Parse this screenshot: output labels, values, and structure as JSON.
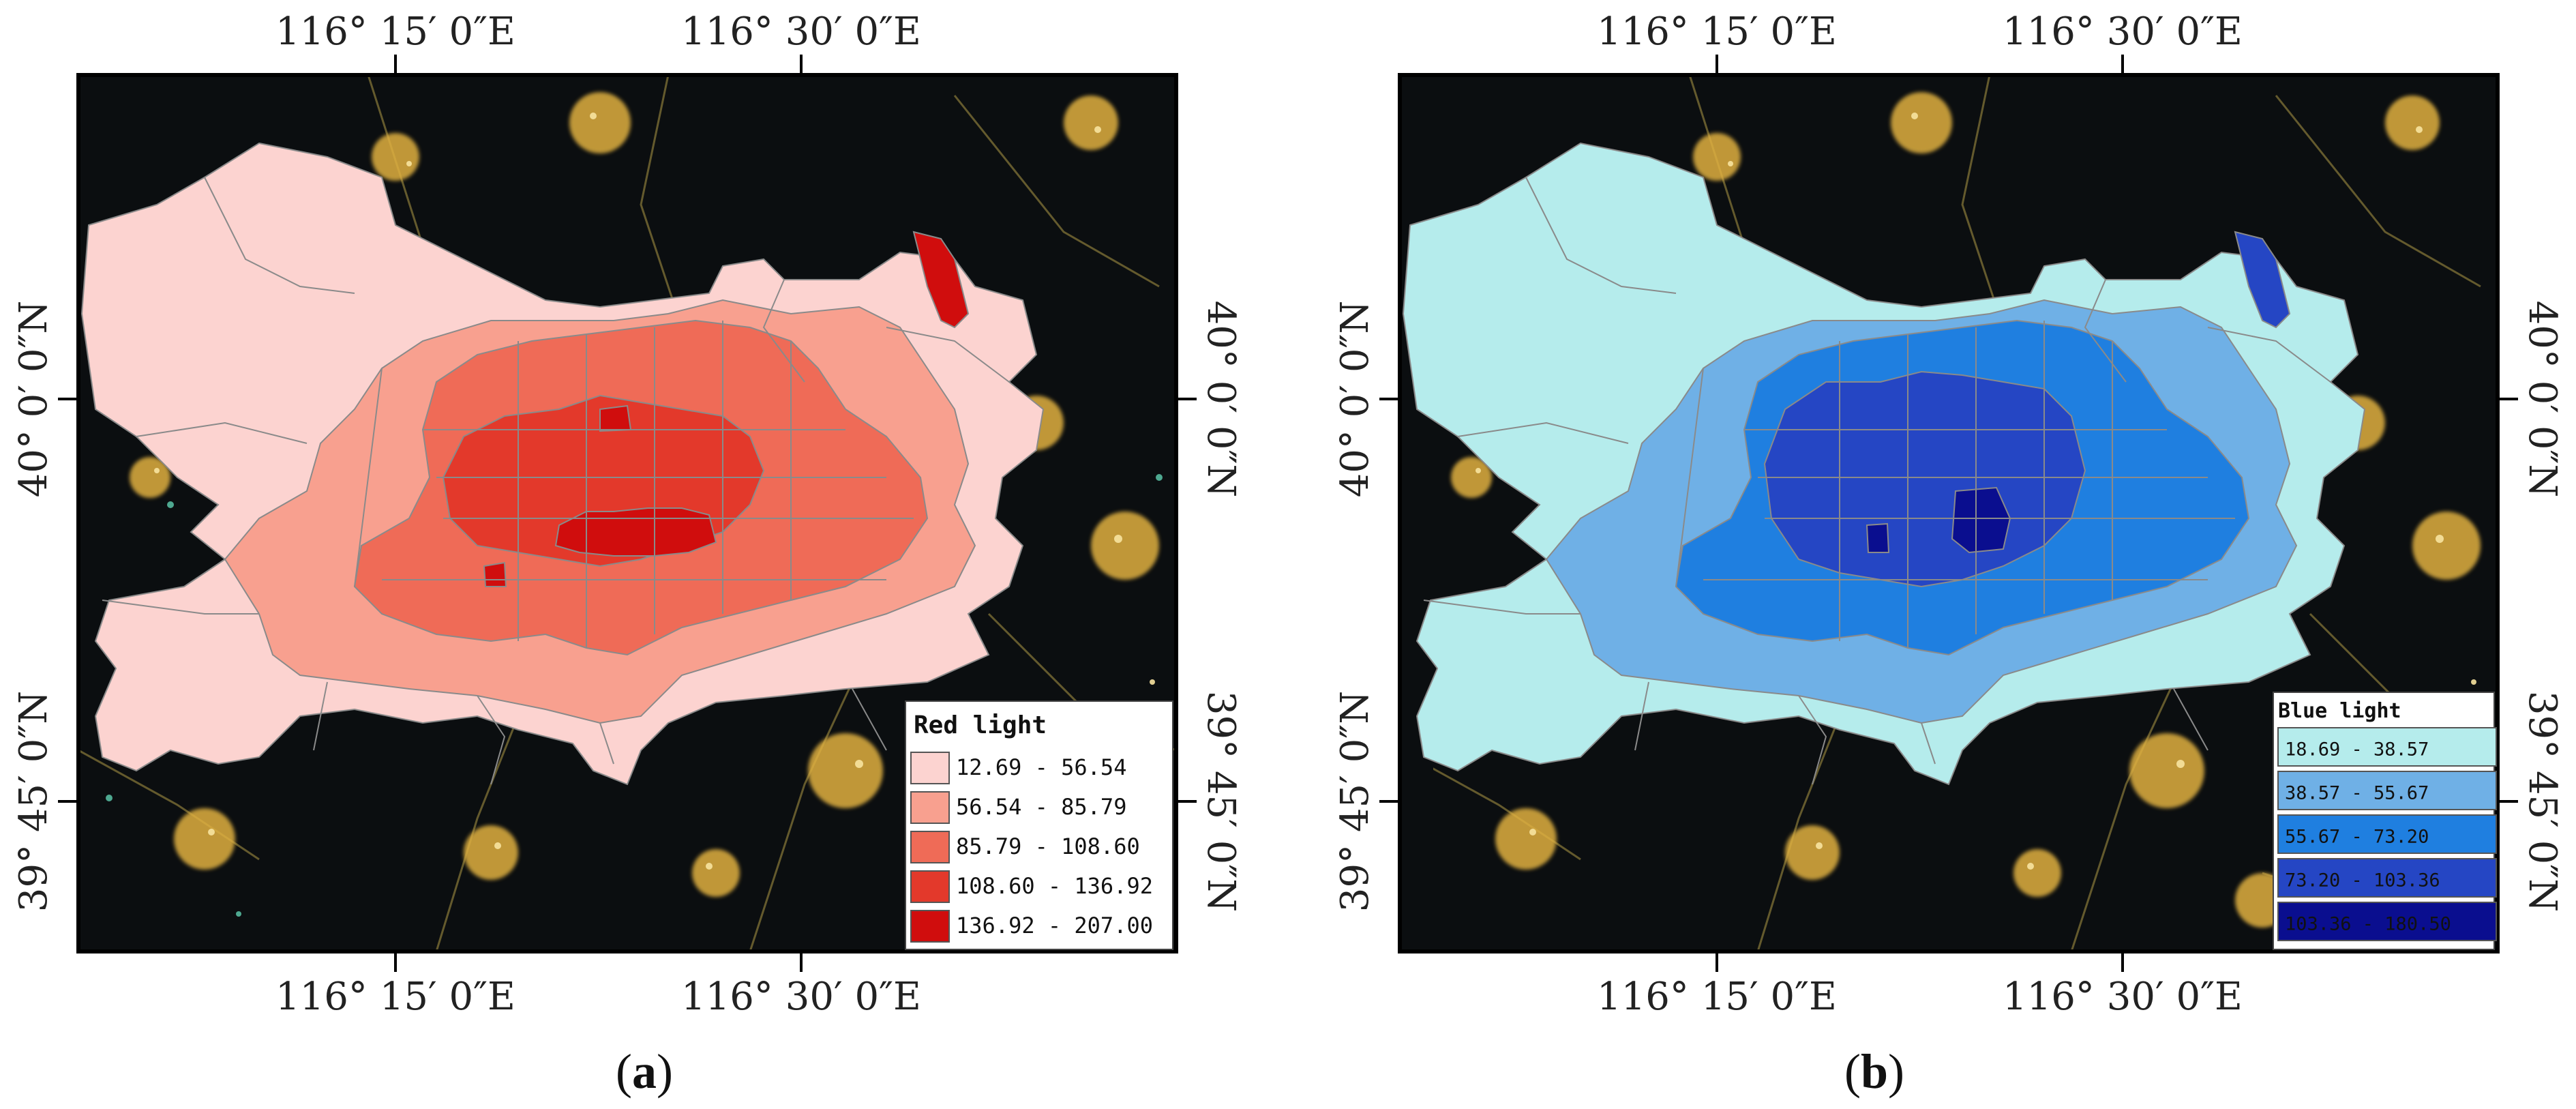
{
  "panels": [
    {
      "id": "a",
      "caption_letter": "a",
      "top_labels": [
        "116° 15′ 0″E",
        "116° 30′ 0″E"
      ],
      "bottom_labels": [
        "116° 15′ 0″E",
        "116° 30′ 0″E"
      ],
      "left_labels": [
        "40° 0′ 0″N",
        "39° 45′ 0″N"
      ],
      "right_labels": [
        "40° 0′ 0″N",
        "39° 45′ 0″N"
      ],
      "legend": {
        "title": "Red light",
        "classes": [
          {
            "label": "12.69 - 56.54",
            "color": "#fcd3d0"
          },
          {
            "label": "56.54 - 85.79",
            "color": "#f8a08f"
          },
          {
            "label": "85.79 - 108.60",
            "color": "#ef6b57"
          },
          {
            "label": "108.60 - 136.92",
            "color": "#e3392b"
          },
          {
            "label": "136.92 - 207.00",
            "color": "#d00d0d"
          }
        ]
      }
    },
    {
      "id": "b",
      "caption_letter": "b",
      "top_labels": [
        "116° 15′ 0″E",
        "116° 30′ 0″E"
      ],
      "bottom_labels": [
        "116° 15′ 0″E",
        "116° 30′ 0″E"
      ],
      "left_labels": [
        "40° 0′ 0″N",
        "39° 45′ 0″N"
      ],
      "right_labels": [
        "40° 0′ 0″N",
        "39° 45′ 0″N"
      ],
      "legend": {
        "title": "Blue light",
        "classes": [
          {
            "label": "18.69 - 38.57",
            "color": "#b5ecec"
          },
          {
            "label": "38.57 - 55.67",
            "color": "#6fb0e6"
          },
          {
            "label": "55.67 - 73.20",
            "color": "#1f7fe0"
          },
          {
            "label": "73.20 - 103.36",
            "color": "#2546c4"
          },
          {
            "label": "103.36 - 180.50",
            "color": "#0a0e8f"
          }
        ]
      }
    }
  ]
}
